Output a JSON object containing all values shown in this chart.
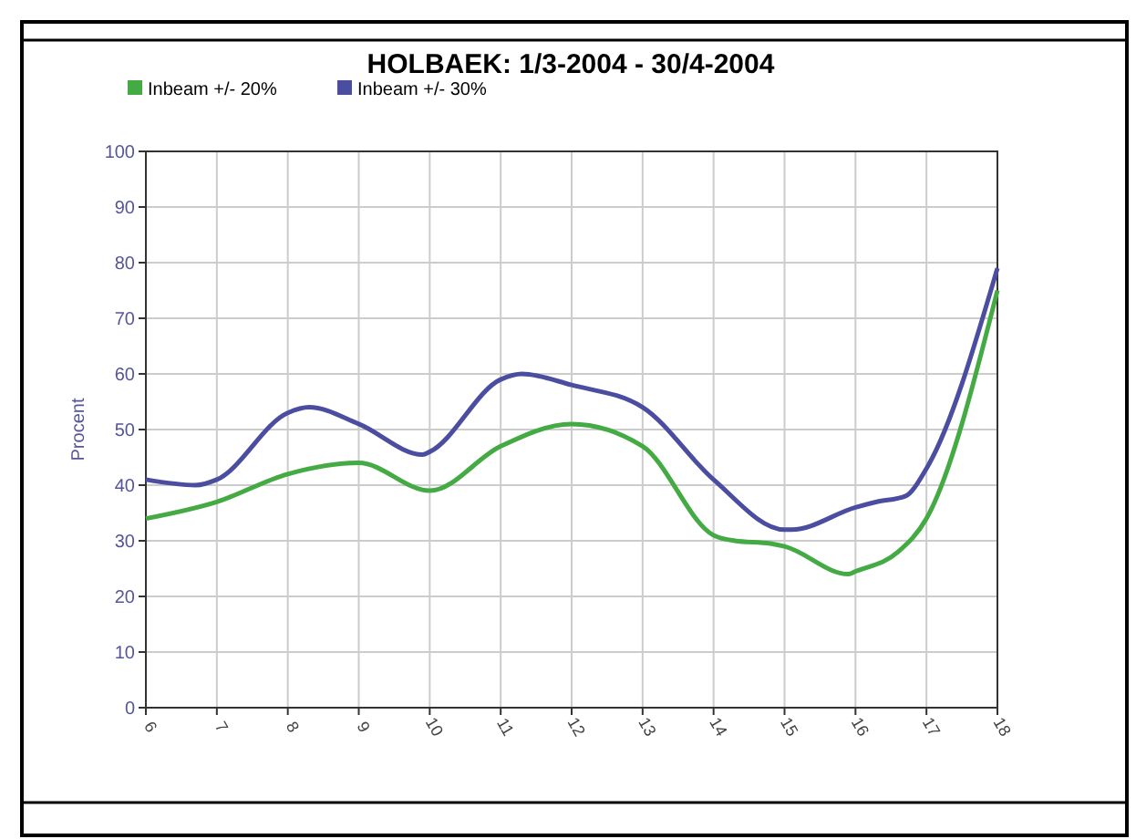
{
  "chart_data": {
    "type": "line",
    "title": "HOLBAEK: 1/3-2004 - 30/4-2004",
    "ylabel": "Procent",
    "xlim": [
      6,
      18
    ],
    "xticks": [
      6,
      7,
      8,
      9,
      10,
      11,
      12,
      13,
      14,
      15,
      16,
      17,
      18
    ],
    "ylim": [
      0,
      100
    ],
    "yticks": [
      0,
      10,
      20,
      30,
      40,
      50,
      60,
      70,
      80,
      90,
      100
    ],
    "grid": true,
    "legend": "top left",
    "line_style": "solid",
    "marker": "none",
    "series": [
      {
        "name": "Inbeam +/- 20%",
        "color": "#44aa44",
        "x": [
          6,
          7,
          8,
          9,
          10,
          11,
          12,
          13,
          14,
          14.3,
          14.8,
          15,
          15.9,
          16,
          16.6,
          17,
          18
        ],
        "values": [
          34,
          37,
          42,
          44,
          39,
          47,
          51,
          47,
          31,
          30,
          29.5,
          29,
          24,
          24.5,
          28,
          34,
          75
        ]
      },
      {
        "name": "Inbeam +/- 30%",
        "color": "#4b4ea0",
        "x": [
          6,
          6.7,
          7,
          8,
          8.3,
          9,
          9.9,
          10,
          11,
          11.3,
          12,
          13,
          14,
          15,
          15.1,
          16,
          16.3,
          16.7,
          17,
          18
        ],
        "values": [
          41,
          40,
          41,
          53,
          54,
          51,
          45.5,
          46,
          59,
          60,
          58,
          54,
          41,
          32,
          32,
          36,
          37,
          38,
          43,
          79
        ]
      }
    ]
  }
}
